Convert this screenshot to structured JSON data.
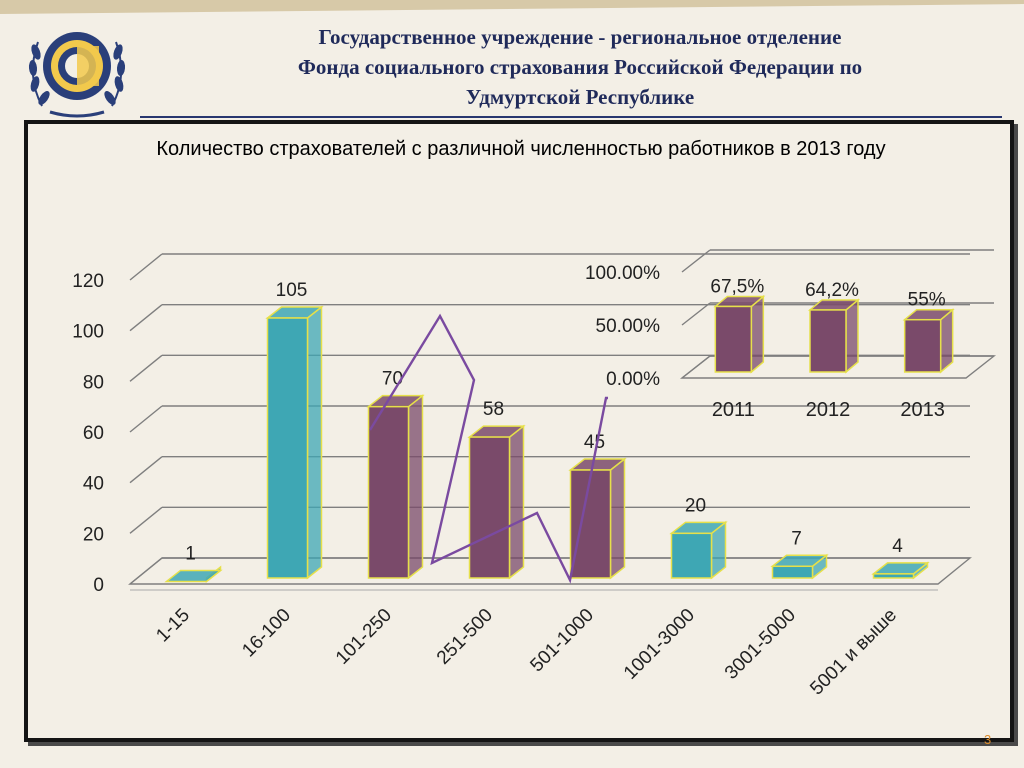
{
  "header": {
    "line1": "Государственное учреждение - региональное отделение",
    "line2": "Фонда социального страхования Российской Федерации по",
    "line3": "Удмуртской Республике"
  },
  "page_number": "3",
  "colors": {
    "teal_bar": "#3ea7b4",
    "purple_bar": "#7a4a6a",
    "bar_edge": "#e6e04a",
    "grid": "#7f7f7f",
    "polyline": "#7a4aa0",
    "header_text": "#1f2a5a"
  },
  "chart_data": [
    {
      "type": "bar",
      "title": "Количество страхователей с различной численностью работников в 2013 году",
      "categories": [
        "1-15",
        "16-100",
        "101-250",
        "251-500",
        "501-1000",
        "1001-3000",
        "3001-5000",
        "5001 и выше"
      ],
      "values": [
        1,
        105,
        70,
        58,
        45,
        20,
        7,
        4
      ],
      "value_labels": [
        "1",
        "105",
        "70",
        "58",
        "45",
        "20",
        "7",
        "4"
      ],
      "highlighted": [
        false,
        false,
        true,
        true,
        true,
        false,
        false,
        false
      ],
      "ylim": [
        0,
        120
      ],
      "yticks": [
        "0",
        "20",
        "40",
        "60",
        "80",
        "100",
        "120"
      ],
      "grid": true,
      "style": "3d"
    },
    {
      "type": "bar",
      "categories": [
        "2011",
        "2012",
        "2013"
      ],
      "values": [
        67.5,
        64.2,
        55
      ],
      "value_labels": [
        "67,5%",
        "64,2%",
        "55%"
      ],
      "ylim": [
        0,
        100
      ],
      "yticks": [
        "0.00%",
        "50.00%",
        "100.00%"
      ],
      "grid": true,
      "style": "3d"
    }
  ]
}
